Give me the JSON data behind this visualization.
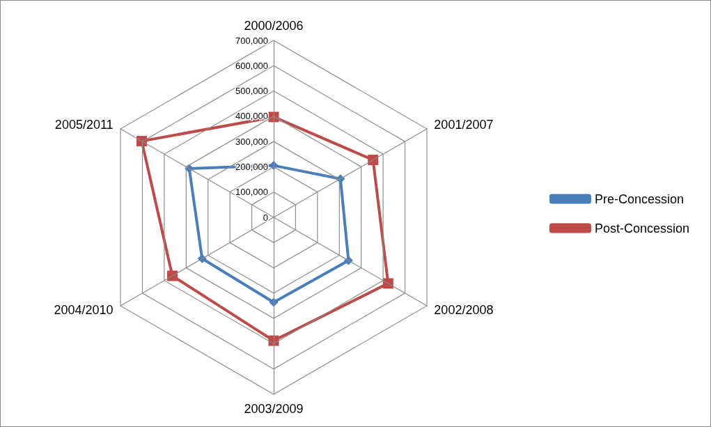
{
  "chart_data": {
    "type": "radar",
    "categories": [
      "2000/2006",
      "2001/2007",
      "2002/2008",
      "2003/2009",
      "2004/2010",
      "2005/2011"
    ],
    "series": [
      {
        "name": "Pre-Concession",
        "color": "#4a7ebb",
        "marker": "diamond",
        "values": [
          205000,
          305000,
          342000,
          336000,
          327000,
          386000
        ]
      },
      {
        "name": "Post-Concession",
        "color": "#be4b48",
        "marker": "square",
        "values": [
          397000,
          454000,
          523000,
          488000,
          463000,
          603000
        ]
      }
    ],
    "ylim": [
      0,
      700000
    ],
    "yticks": [
      0,
      {
        "value": 100000,
        "label": "100,000"
      },
      {
        "value": 200000,
        "label": "200,000"
      },
      {
        "value": 300000,
        "label": "300,000"
      },
      {
        "value": 400000,
        "label": "400,000"
      },
      {
        "value": 500000,
        "label": "500,000"
      },
      {
        "value": 600000,
        "label": "600,000"
      },
      {
        "value": 700000,
        "label": "700,000"
      }
    ],
    "grid": true,
    "legend": "right"
  }
}
